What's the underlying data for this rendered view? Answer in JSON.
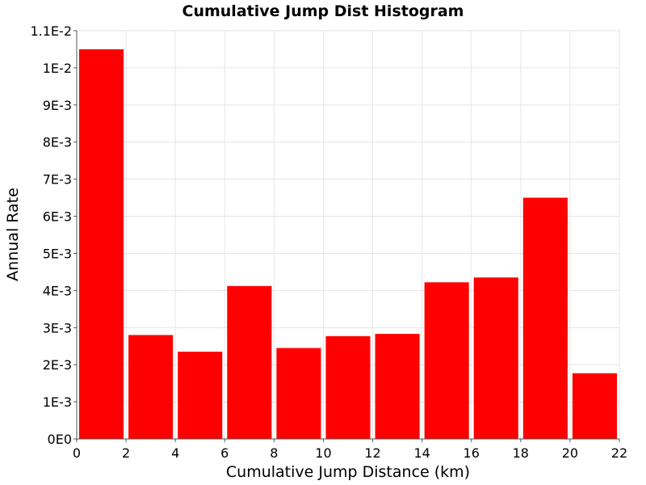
{
  "chart_data": {
    "type": "bar",
    "title": "Cumulative Jump Dist Histogram",
    "xlabel": "Cumulative Jump Distance (km)",
    "ylabel": "Annual Rate",
    "xlim": [
      0,
      22
    ],
    "ylim": [
      0,
      0.011
    ],
    "bin_width": 2,
    "x_ticks": [
      0,
      2,
      4,
      6,
      8,
      10,
      12,
      14,
      16,
      18,
      20,
      22
    ],
    "x_tick_labels": [
      "0",
      "2",
      "4",
      "6",
      "8",
      "10",
      "12",
      "14",
      "16",
      "18",
      "20",
      "22"
    ],
    "y_ticks": [
      0,
      0.001,
      0.002,
      0.003,
      0.004,
      0.005,
      0.006,
      0.007,
      0.008,
      0.009,
      0.01,
      0.011
    ],
    "y_tick_labels": [
      "0E0",
      "1E-3",
      "2E-3",
      "3E-3",
      "4E-3",
      "5E-3",
      "6E-3",
      "7E-3",
      "8E-3",
      "9E-3",
      "1E-2",
      "1.1E-2"
    ],
    "grid": true,
    "color": "#ff0000",
    "series": [
      {
        "x": [
          1,
          3,
          5,
          7,
          9,
          11,
          13,
          15,
          17,
          19,
          21
        ],
        "values": [
          0.0105,
          0.0028,
          0.00235,
          0.00412,
          0.00245,
          0.00277,
          0.00283,
          0.00422,
          0.00435,
          0.0065,
          0.00177
        ]
      }
    ]
  }
}
